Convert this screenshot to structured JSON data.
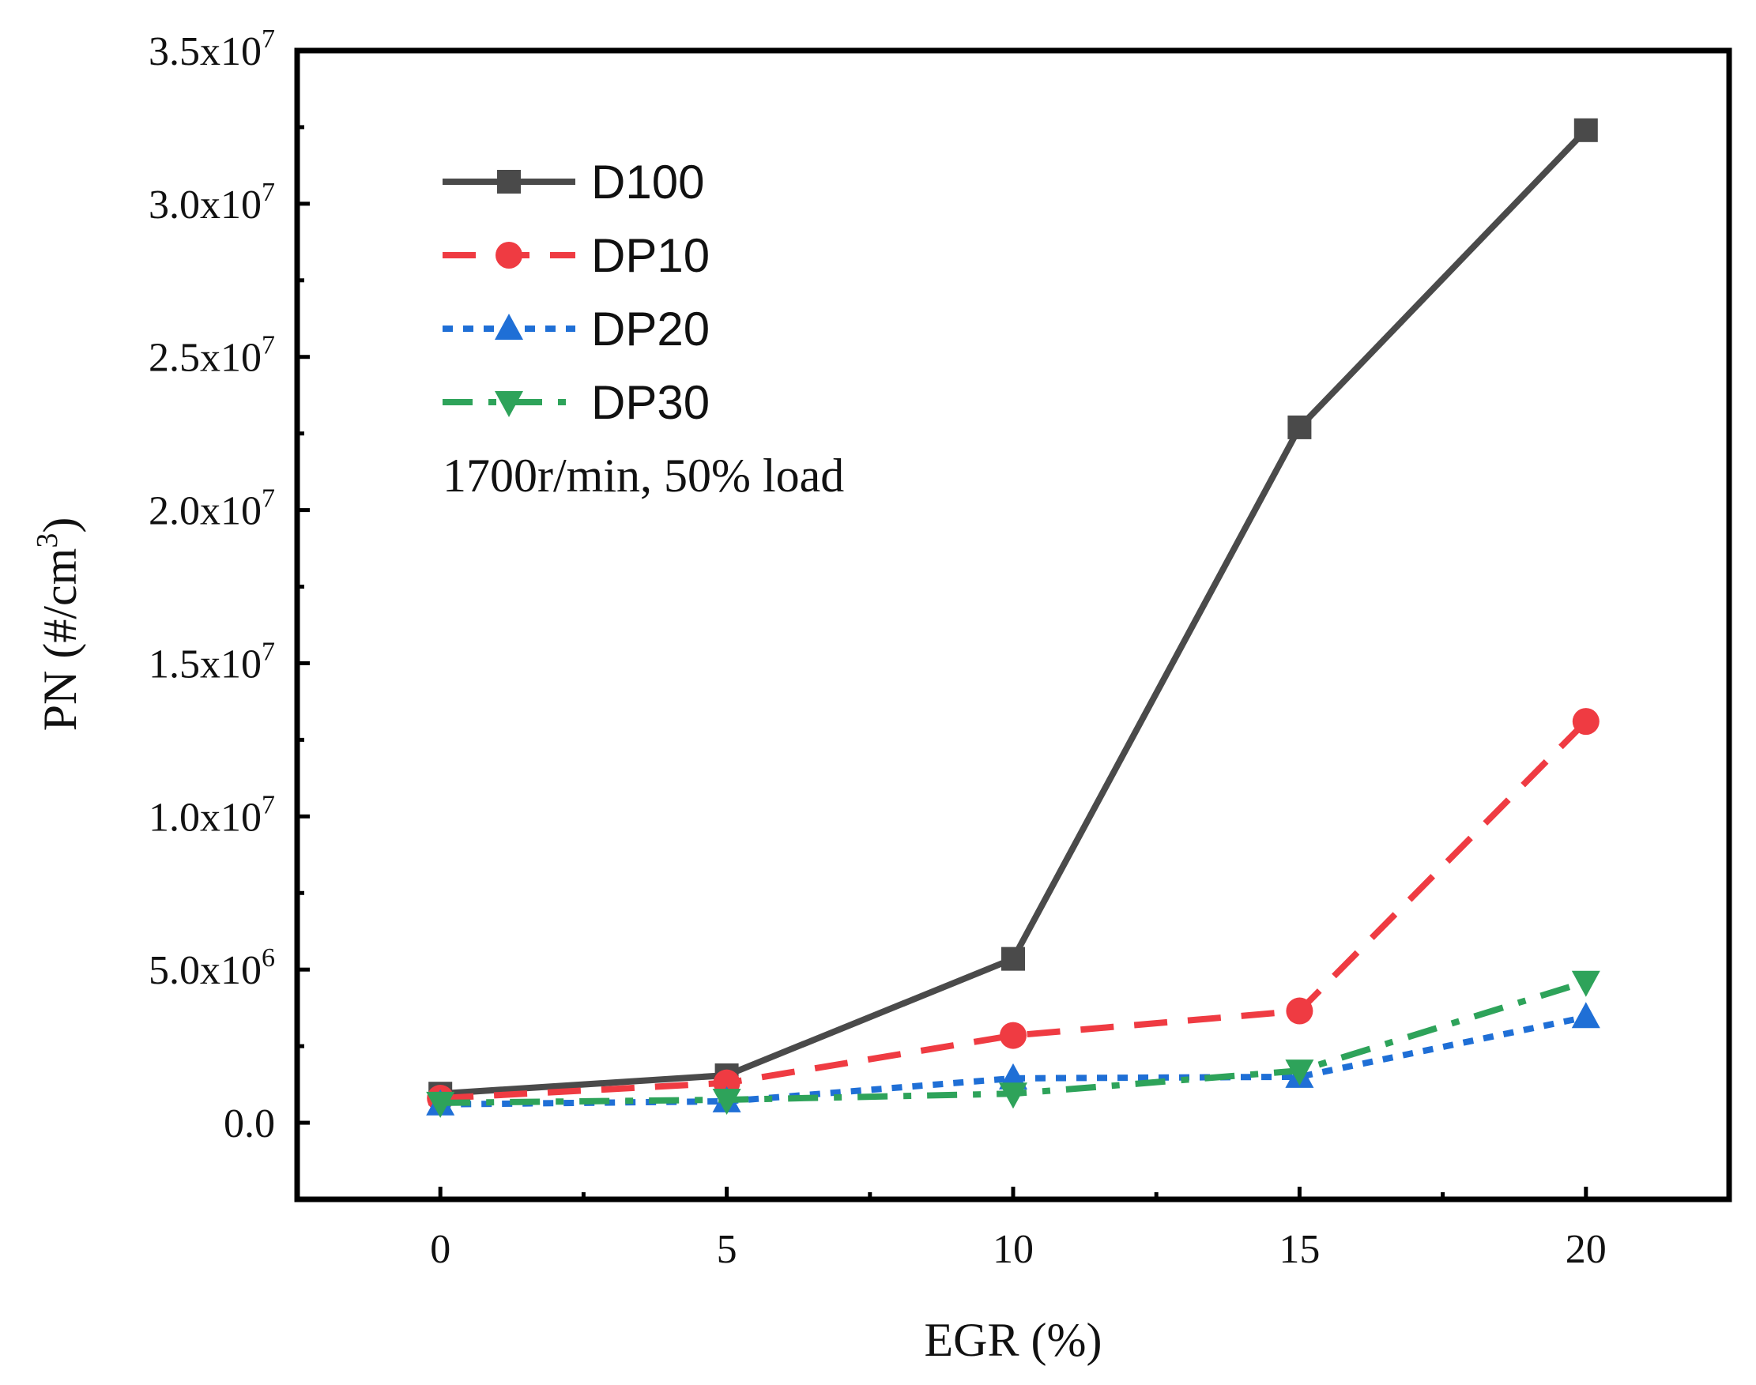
{
  "chart_data": {
    "type": "line",
    "title": "",
    "xlabel": "EGR (%)",
    "ylabel": {
      "base": "PN (#/cm",
      "sup": "3",
      "end": ")"
    },
    "x": [
      0,
      5,
      10,
      15,
      20
    ],
    "xlim": [
      -2.5,
      22.5
    ],
    "ylim": [
      -2500000,
      35000000
    ],
    "x_ticks": [
      {
        "value": 0,
        "label": "0"
      },
      {
        "value": 5,
        "label": "5"
      },
      {
        "value": 10,
        "label": "10"
      },
      {
        "value": 15,
        "label": "15"
      },
      {
        "value": 20,
        "label": "20"
      }
    ],
    "y_ticks": [
      {
        "value": 0,
        "mant": "0.0",
        "exp": ""
      },
      {
        "value": 5000000,
        "mant": "5.0x10",
        "exp": "6"
      },
      {
        "value": 10000000,
        "mant": "1.0x10",
        "exp": "7"
      },
      {
        "value": 15000000,
        "mant": "1.5x10",
        "exp": "7"
      },
      {
        "value": 20000000,
        "mant": "2.0x10",
        "exp": "7"
      },
      {
        "value": 25000000,
        "mant": "2.5x10",
        "exp": "7"
      },
      {
        "value": 30000000,
        "mant": "3.0x10",
        "exp": "7"
      },
      {
        "value": 35000000,
        "mant": "3.5x10",
        "exp": "7"
      }
    ],
    "series": [
      {
        "name": "D100",
        "color": "#4a4a4a",
        "dash": "solid",
        "marker": "square",
        "values": [
          950000,
          1550000,
          5350000,
          22700000,
          32400000
        ]
      },
      {
        "name": "DP10",
        "color": "#ef3b42",
        "dash": "dash",
        "marker": "circle",
        "values": [
          800000,
          1300000,
          2850000,
          3650000,
          13100000
        ]
      },
      {
        "name": "DP20",
        "color": "#1f6fd6",
        "dash": "dot",
        "marker": "triangle-up",
        "values": [
          600000,
          700000,
          1450000,
          1500000,
          3450000
        ]
      },
      {
        "name": "DP30",
        "color": "#2ea35a",
        "dash": "dashdot",
        "marker": "triangle-down",
        "values": [
          650000,
          750000,
          950000,
          1700000,
          4600000
        ]
      }
    ],
    "legend_position": "top-left",
    "annotation": "1700r/min, 50% load"
  }
}
